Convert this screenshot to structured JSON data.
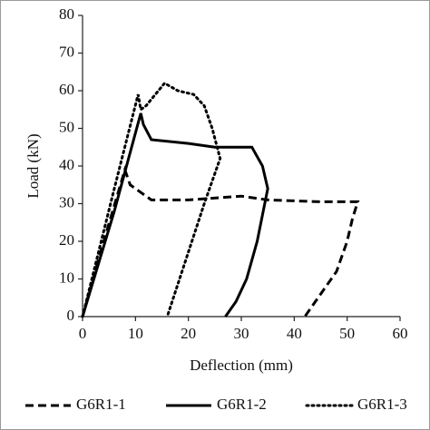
{
  "chart_data": {
    "type": "line",
    "x_label": "Deflection (mm)",
    "y_label": "Load (kN)",
    "xlim": [
      0,
      60
    ],
    "xticks": [
      0,
      10,
      20,
      30,
      40,
      50,
      60
    ],
    "ylim": [
      0,
      80
    ],
    "yticks": [
      0,
      10,
      20,
      30,
      40,
      50,
      60,
      70,
      80
    ],
    "grid": false,
    "legend": "bottom",
    "series": [
      {
        "name": "G6R1-1",
        "color": "#000000",
        "dash": "dashed",
        "x": [
          0,
          4,
          8,
          9,
          11,
          13,
          20,
          30,
          35,
          45,
          52,
          51,
          50,
          48,
          45,
          42
        ],
        "values": [
          0,
          20,
          39,
          35,
          33,
          31,
          31,
          32,
          31,
          30.5,
          30.5,
          26,
          20,
          12,
          6,
          0
        ]
      },
      {
        "name": "G6R1-2",
        "color": "#000000",
        "dash": "solid",
        "x": [
          0,
          6,
          11,
          11.5,
          13,
          20,
          25,
          32,
          34,
          35,
          33,
          31,
          29,
          27
        ],
        "values": [
          0,
          28,
          54,
          51,
          47,
          46,
          45,
          45,
          40,
          34,
          20,
          10,
          4,
          0
        ]
      },
      {
        "name": "G6R1-3",
        "color": "#000000",
        "dash": "dotted",
        "x": [
          0,
          6,
          10.5,
          11,
          12,
          15.5,
          18,
          21,
          23,
          24.5,
          26,
          23,
          16
        ],
        "values": [
          0,
          34,
          59,
          55,
          56,
          62,
          60,
          59,
          56,
          50,
          42,
          30,
          0
        ]
      }
    ]
  }
}
